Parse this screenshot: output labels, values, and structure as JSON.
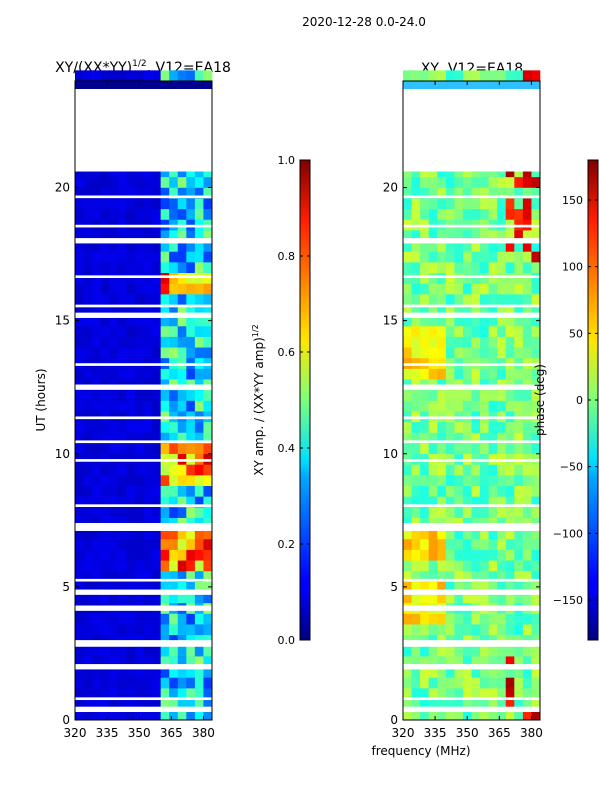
{
  "figure": {
    "suptitle": "2020-12-28 0.0-24.0",
    "shared_xlabel": "frequency (MHz)"
  },
  "chart_data": [
    {
      "type": "heatmap",
      "title_prefix": "XY/(XX*YY)",
      "title_exp": "1/2",
      "title_suffix": ", V12=EA18",
      "ylabel": "UT (hours)",
      "xlim": [
        320,
        384
      ],
      "ylim": [
        0,
        24
      ],
      "xticks": [
        320,
        335,
        350,
        365,
        380
      ],
      "yticks": [
        0,
        5,
        10,
        15,
        20
      ],
      "blank_ut_range": [
        20.6,
        23.7
      ],
      "colormap": "jet",
      "colorbar": {
        "label_text": "XY amp. / (XX*YY amp)",
        "label_exp": "1/2",
        "range": [
          0.0,
          1.0
        ],
        "ticks": [
          "0.0",
          "0.2",
          "0.4",
          "0.6",
          "0.8",
          "1.0"
        ]
      }
    },
    {
      "type": "heatmap",
      "title": "XY, V12=EA18",
      "xlim": [
        320,
        384
      ],
      "ylim": [
        0,
        24
      ],
      "xticks": [
        320,
        335,
        350,
        365,
        380
      ],
      "yticks": [
        0,
        5,
        10,
        15,
        20
      ],
      "blank_ut_range": [
        20.6,
        23.7
      ],
      "colormap": "jet",
      "colorbar": {
        "label": "phase (deg)",
        "range": [
          -180,
          180
        ],
        "ticks": [
          "−150",
          "−100",
          "−50",
          "0",
          "50",
          "100",
          "150"
        ]
      }
    }
  ]
}
